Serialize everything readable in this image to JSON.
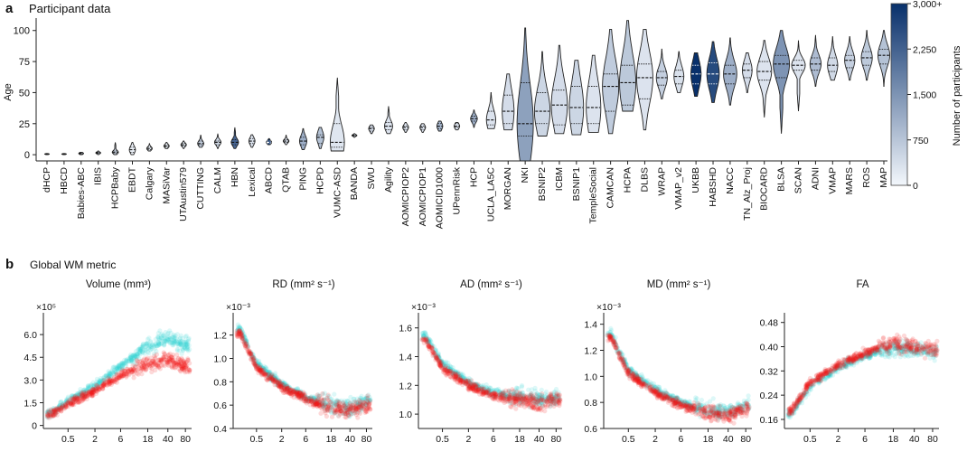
{
  "panel_a": {
    "label": "a",
    "title": "Participant data",
    "colorbar": {
      "label": "Number of participants",
      "ticks": [
        "3,000+",
        "2,250",
        "1,500",
        "750",
        "0"
      ],
      "color_low": "#f3f7fc",
      "color_high": "#08306b"
    }
  },
  "panel_b": {
    "label": "b",
    "title": "Global WM metric",
    "series_colors": {
      "male": "#33d6d6",
      "female": "#f01414"
    }
  },
  "chart_data": [
    {
      "type": "violin",
      "ylabel": "Age",
      "ylim": [
        -5,
        110
      ],
      "yticks": [
        "0",
        "25",
        "50",
        "75",
        "100"
      ],
      "grid": false,
      "categories": [
        "dHCP",
        "HBCD",
        "Babies-ABC",
        "IBIS",
        "HCPBaby",
        "EBDT",
        "Calgary",
        "MASiVar",
        "UTAustin579",
        "CUTTING",
        "CALM",
        "HBN",
        "Lexical",
        "ABCD",
        "QTAB",
        "PING",
        "HCPD",
        "VUMC-ASD",
        "BANDA",
        "SWU",
        "Agility",
        "AOMICPIOP2",
        "AOMICPIOP1",
        "AOMICID1000",
        "UPennRisk",
        "HCP",
        "UCLA_LA5C",
        "MORGAN",
        "NKI",
        "BSNIP2",
        "ICBM",
        "BSNIP1",
        "TempleSocial",
        "CAMCAN",
        "HCPA",
        "DLBS",
        "WRAP",
        "VMAP_v2",
        "UKBB",
        "HABSHD",
        "NACC",
        "TN_Alz_Proj",
        "BIOCARD",
        "BLSA",
        "SCAN",
        "ADNI",
        "VMAP",
        "MARS",
        "ROS",
        "MAP"
      ],
      "age_min": [
        0,
        0,
        0,
        0,
        0,
        0,
        3,
        5,
        5,
        6,
        5,
        5,
        6,
        8,
        8,
        4,
        5,
        3,
        14,
        17,
        17,
        18,
        18,
        19,
        20,
        22,
        21,
        20,
        -5,
        15,
        17,
        16,
        18,
        17,
        35,
        20,
        45,
        50,
        47,
        42,
        40,
        50,
        30,
        17,
        35,
        55,
        60,
        60,
        60,
        55
      ],
      "age_max": [
        1,
        1,
        2,
        3,
        10,
        10,
        9,
        10,
        11,
        16,
        17,
        22,
        16,
        13,
        16,
        21,
        22,
        62,
        17,
        24,
        39,
        26,
        25,
        27,
        26,
        36,
        50,
        65,
        102,
        83,
        88,
        76,
        80,
        101,
        108,
        101,
        85,
        83,
        82,
        91,
        94,
        82,
        92,
        100,
        92,
        96,
        95,
        95,
        100,
        100
      ],
      "q1": [
        0.3,
        0.3,
        0.5,
        1,
        1,
        2,
        4,
        6,
        7,
        8,
        8,
        8,
        9,
        9,
        10,
        8,
        9,
        6,
        15,
        19,
        20,
        20,
        20,
        21,
        22,
        27,
        24,
        25,
        15,
        25,
        24,
        25,
        25,
        35,
        40,
        45,
        56,
        57,
        57,
        57,
        57,
        62,
        60,
        62,
        68,
        68,
        67,
        70,
        72,
        73
      ],
      "median": [
        0.5,
        0.5,
        1,
        1.5,
        2,
        4,
        5,
        7,
        8,
        9,
        10,
        10,
        11,
        10,
        11,
        11,
        14,
        10,
        15.5,
        21,
        23,
        22,
        22,
        23,
        23,
        29,
        28,
        35,
        25,
        35,
        40,
        38,
        38,
        55,
        58,
        62,
        62,
        63,
        65,
        65,
        65,
        68,
        67,
        73,
        72,
        73,
        72,
        76,
        78,
        80
      ],
      "q3": [
        0.7,
        0.7,
        1.5,
        2,
        3,
        6,
        6,
        8,
        9,
        11,
        11,
        12,
        13,
        11,
        12,
        14,
        16,
        25,
        16,
        22,
        26,
        23,
        23,
        25,
        25,
        31,
        35,
        48,
        58,
        50,
        52,
        55,
        55,
        65,
        72,
        73,
        67,
        68,
        72,
        74,
        72,
        73,
        75,
        80,
        76,
        78,
        78,
        80,
        83,
        85
      ],
      "participants": [
        850,
        600,
        300,
        500,
        500,
        100,
        150,
        100,
        200,
        600,
        450,
        2200,
        300,
        3000,
        300,
        1100,
        800,
        250,
        250,
        400,
        300,
        300,
        300,
        1000,
        300,
        1100,
        300,
        400,
        1300,
        500,
        400,
        500,
        300,
        650,
        700,
        300,
        600,
        350,
        3000,
        2600,
        1100,
        400,
        300,
        1500,
        300,
        900,
        450,
        600,
        700,
        800
      ]
    },
    {
      "type": "scatter",
      "title": "Volume (mm³)",
      "multiplier": "×10⁵",
      "xscale": "log-age",
      "xticks": [
        "0.5",
        "2",
        "6",
        "18",
        "40",
        "80"
      ],
      "yticks": [
        "0",
        "1.5",
        "3.0",
        "4.5",
        "6.0"
      ],
      "ylim": [
        -0.2,
        7.2
      ],
      "series": [
        {
          "name": "",
          "color": "#33d6d6",
          "points": [
            [
              0.1,
              0.8
            ],
            [
              0.5,
              1.6
            ],
            [
              2,
              2.6
            ],
            [
              6,
              3.9
            ],
            [
              18,
              5.2
            ],
            [
              40,
              5.9
            ],
            [
              80,
              5.3
            ]
          ]
        },
        {
          "name": "",
          "color": "#f01414",
          "points": [
            [
              0.1,
              0.7
            ],
            [
              0.5,
              1.4
            ],
            [
              2,
              2.3
            ],
            [
              6,
              3.3
            ],
            [
              18,
              4.1
            ],
            [
              40,
              4.4
            ],
            [
              80,
              3.9
            ]
          ]
        }
      ]
    },
    {
      "type": "scatter",
      "title": "RD (mm² s⁻¹)",
      "multiplier": "×10⁻³",
      "xscale": "log-age",
      "xticks": [
        "0.5",
        "2",
        "6",
        "18",
        "40",
        "80"
      ],
      "yticks": [
        "0.4",
        "0.6",
        "0.8",
        "1.0",
        "1.2"
      ],
      "ylim": [
        0.4,
        1.36
      ],
      "series": [
        {
          "name": "",
          "color": "#33d6d6",
          "points": [
            [
              0.1,
              1.25
            ],
            [
              0.5,
              0.95
            ],
            [
              2,
              0.78
            ],
            [
              6,
              0.67
            ],
            [
              18,
              0.6
            ],
            [
              40,
              0.58
            ],
            [
              80,
              0.63
            ]
          ]
        },
        {
          "name": "",
          "color": "#f01414",
          "points": [
            [
              0.1,
              1.22
            ],
            [
              0.5,
              0.92
            ],
            [
              2,
              0.76
            ],
            [
              6,
              0.65
            ],
            [
              18,
              0.58
            ],
            [
              40,
              0.56
            ],
            [
              80,
              0.6
            ]
          ]
        }
      ]
    },
    {
      "type": "scatter",
      "title": "AD (mm² s⁻¹)",
      "multiplier": "×10⁻³",
      "xscale": "log-age",
      "xticks": [
        "0.5",
        "2",
        "6",
        "18",
        "40",
        "80"
      ],
      "yticks": [
        "1.0",
        "1.2",
        "1.4",
        "1.6"
      ],
      "ylim": [
        0.9,
        1.68
      ],
      "series": [
        {
          "name": "",
          "color": "#33d6d6",
          "points": [
            [
              0.1,
              1.55
            ],
            [
              0.5,
              1.35
            ],
            [
              2,
              1.22
            ],
            [
              6,
              1.15
            ],
            [
              18,
              1.12
            ],
            [
              40,
              1.1
            ],
            [
              80,
              1.12
            ]
          ]
        },
        {
          "name": "",
          "color": "#f01414",
          "points": [
            [
              0.1,
              1.52
            ],
            [
              0.5,
              1.32
            ],
            [
              2,
              1.2
            ],
            [
              6,
              1.13
            ],
            [
              18,
              1.1
            ],
            [
              40,
              1.08
            ],
            [
              80,
              1.1
            ]
          ]
        }
      ]
    },
    {
      "type": "scatter",
      "title": "MD (mm² s⁻¹)",
      "multiplier": "×10⁻³",
      "xscale": "log-age",
      "xticks": [
        "0.5",
        "2",
        "6",
        "18",
        "40",
        "80"
      ],
      "yticks": [
        "0.6",
        "0.8",
        "1.0",
        "1.2",
        "1.4"
      ],
      "ylim": [
        0.6,
        1.46
      ],
      "series": [
        {
          "name": "",
          "color": "#33d6d6",
          "points": [
            [
              0.1,
              1.33
            ],
            [
              0.5,
              1.05
            ],
            [
              2,
              0.9
            ],
            [
              6,
              0.8
            ],
            [
              18,
              0.74
            ],
            [
              40,
              0.72
            ],
            [
              80,
              0.78
            ]
          ]
        },
        {
          "name": "",
          "color": "#f01414",
          "points": [
            [
              0.1,
              1.3
            ],
            [
              0.5,
              1.02
            ],
            [
              2,
              0.88
            ],
            [
              6,
              0.78
            ],
            [
              18,
              0.72
            ],
            [
              40,
              0.7
            ],
            [
              80,
              0.75
            ]
          ]
        }
      ]
    },
    {
      "type": "scatter",
      "title": "FA",
      "multiplier": "",
      "xscale": "log-age",
      "xticks": [
        "0.5",
        "2",
        "6",
        "18",
        "40",
        "80"
      ],
      "yticks": [
        "0.16",
        "0.24",
        "0.32",
        "0.40",
        "0.48"
      ],
      "ylim": [
        0.13,
        0.5
      ],
      "series": [
        {
          "name": "",
          "color": "#33d6d6",
          "points": [
            [
              0.1,
              0.18
            ],
            [
              0.5,
              0.27
            ],
            [
              2,
              0.33
            ],
            [
              6,
              0.37
            ],
            [
              18,
              0.4
            ],
            [
              40,
              0.39
            ],
            [
              80,
              0.38
            ]
          ]
        },
        {
          "name": "",
          "color": "#f01414",
          "points": [
            [
              0.1,
              0.19
            ],
            [
              0.5,
              0.28
            ],
            [
              2,
              0.34
            ],
            [
              6,
              0.38
            ],
            [
              18,
              0.41
            ],
            [
              40,
              0.4
            ],
            [
              80,
              0.39
            ]
          ]
        }
      ]
    }
  ]
}
